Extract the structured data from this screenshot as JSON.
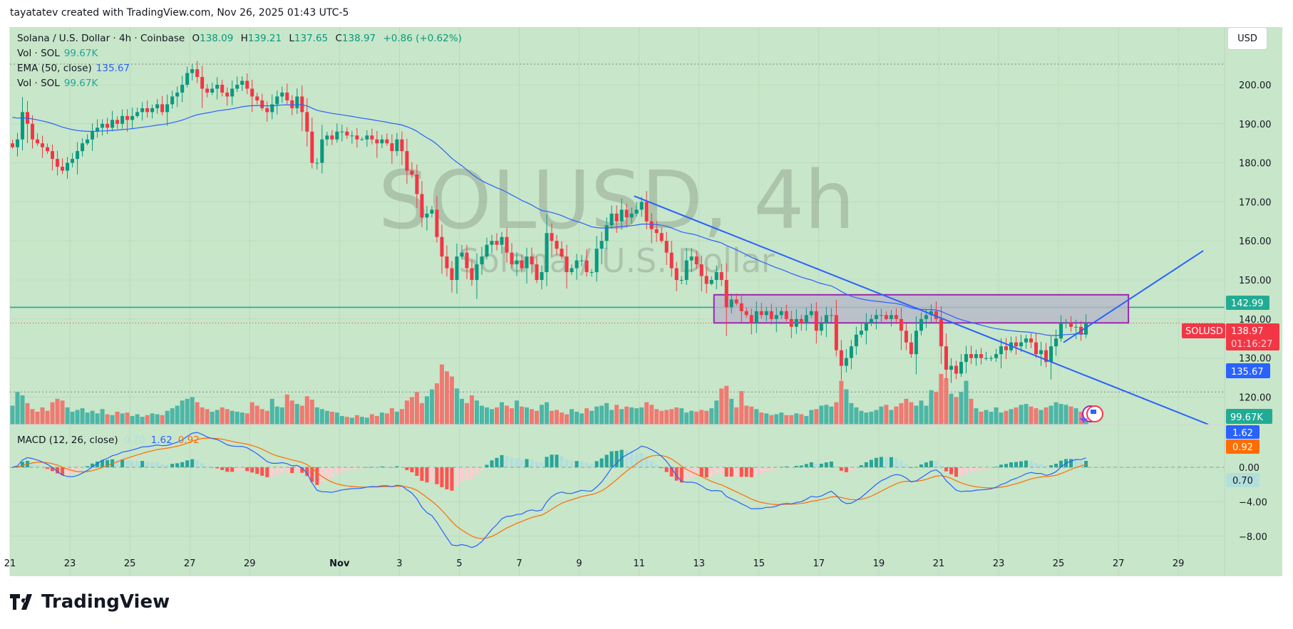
{
  "credit": "tayatatev created with TradingView.com, Nov 26, 2025 01:43 UTC-5",
  "brand": "TradingView",
  "currency_button": "USD",
  "legend": {
    "symbol": "Solana / U.S. Dollar · 4h · Coinbase",
    "o_label": "O",
    "o": "138.09",
    "h_label": "H",
    "h": "139.21",
    "l_label": "L",
    "l": "137.65",
    "c_label": "C",
    "c": "138.97",
    "change": "+0.86 (+0.62%)",
    "vol1_label": "Vol · SOL",
    "vol1": "99.67K",
    "ema_label": "EMA (50, close)",
    "ema": "135.67",
    "vol2_label": "Vol · SOL",
    "vol2": "99.67K",
    "macd_label": "MACD (12, 26, close)",
    "macd_hist": "0.70",
    "macd_line": "1.62",
    "macd_signal": "0.92"
  },
  "watermark": {
    "title": "SOLUSD, 4h",
    "subtitle": "Solana / U.S. Dollar"
  },
  "price_tags": {
    "level": "142.99",
    "symbol": "SOLUSD",
    "last": "138.97",
    "countdown": "01:16:27",
    "ema": "135.67",
    "volume": "99.67K",
    "macd": "1.62",
    "signal": "0.92",
    "hist": "0.70"
  },
  "colors": {
    "background": "#c8e6c9",
    "up": "#089981",
    "down": "#f23645",
    "vol_up": "#4db6a6",
    "vol_down": "#ef7a72",
    "ema": "#2962ff",
    "macd": "#2962ff",
    "signal": "#ff6d00",
    "trendline": "#2962ff",
    "box_border": "#9c27b0",
    "box_fill": "#b8b8c8",
    "level_line": "#22ab94"
  },
  "chart_data": {
    "type": "candlestick",
    "title": "",
    "interval": "4h",
    "start": "2025-10-21T00:00",
    "price_axis": {
      "range": [
        113,
        211
      ],
      "ticks": [
        "200.00",
        "190.00",
        "180.00",
        "170.00",
        "160.00",
        "150.00",
        "140.00",
        "130.00",
        "120.00"
      ]
    },
    "macd_axis": {
      "range": [
        -9.5,
        4.5
      ],
      "ticks": [
        "0.00",
        "-4.00",
        "-8.00"
      ]
    },
    "x_ticks": [
      {
        "label": "21",
        "date": "2025-10-21"
      },
      {
        "label": "23",
        "date": "2025-10-23"
      },
      {
        "label": "25",
        "date": "2025-10-25"
      },
      {
        "label": "27",
        "date": "2025-10-27"
      },
      {
        "label": "29",
        "date": "2025-10-29"
      },
      {
        "label": "Nov",
        "date": "2025-11-01"
      },
      {
        "label": "3",
        "date": "2025-11-03"
      },
      {
        "label": "5",
        "date": "2025-11-05"
      },
      {
        "label": "7",
        "date": "2025-11-07"
      },
      {
        "label": "9",
        "date": "2025-11-09"
      },
      {
        "label": "11",
        "date": "2025-11-11"
      },
      {
        "label": "13",
        "date": "2025-11-13"
      },
      {
        "label": "15",
        "date": "2025-11-15"
      },
      {
        "label": "17",
        "date": "2025-11-17"
      },
      {
        "label": "19",
        "date": "2025-11-19"
      },
      {
        "label": "21",
        "date": "2025-11-21"
      },
      {
        "label": "23",
        "date": "2025-11-23"
      },
      {
        "label": "25",
        "date": "2025-11-25"
      },
      {
        "label": "27",
        "date": "2025-11-27"
      },
      {
        "label": "29",
        "date": "2025-11-29"
      }
    ],
    "closes": [
      184,
      186,
      193,
      190,
      186,
      185,
      184,
      183,
      181,
      179,
      178,
      180,
      181,
      183,
      185,
      186,
      188,
      189,
      190,
      189,
      191,
      190,
      192,
      191,
      192,
      193,
      194,
      193,
      194,
      195,
      193,
      195,
      197,
      198,
      200,
      203,
      204,
      202,
      199,
      198,
      199,
      200,
      198,
      197,
      199,
      200,
      201,
      199,
      197,
      196,
      194,
      193,
      195,
      197,
      198,
      196,
      194,
      197,
      193,
      188,
      180,
      180,
      186,
      187,
      186,
      188,
      188,
      187,
      187,
      186,
      186,
      187,
      186,
      185,
      186,
      185,
      183,
      186,
      183,
      178,
      177,
      172,
      166,
      167,
      168,
      161,
      156,
      153,
      150,
      156,
      157,
      153,
      150,
      154,
      156,
      159,
      160,
      159,
      161,
      157,
      154,
      155,
      153,
      156,
      154,
      150,
      152,
      162,
      160,
      158,
      156,
      152,
      153,
      155,
      155,
      152,
      152,
      158,
      160,
      164,
      167,
      165,
      168,
      166,
      167,
      168,
      170,
      165,
      163,
      162,
      160,
      157,
      153,
      150,
      150,
      155,
      156,
      154,
      151,
      149,
      150,
      152,
      150,
      143,
      145,
      144,
      142,
      141,
      139,
      142,
      141,
      142,
      140,
      141,
      142,
      140,
      138,
      140,
      139,
      141,
      142,
      137,
      139,
      141,
      141,
      132,
      128,
      130,
      133,
      136,
      137,
      139,
      140,
      141,
      141,
      140,
      141,
      140,
      137,
      134,
      131,
      137,
      140,
      141,
      142,
      140,
      133,
      127,
      128,
      126,
      129,
      131,
      130,
      131,
      130,
      130,
      130,
      131,
      133,
      132,
      134,
      133,
      134,
      135,
      134,
      131,
      132,
      129,
      133,
      135,
      139,
      139,
      138,
      138,
      136,
      138.97
    ],
    "volumes_k": [
      220,
      380,
      340,
      250,
      180,
      150,
      200,
      160,
      260,
      300,
      280,
      200,
      150,
      170,
      190,
      140,
      160,
      130,
      180,
      120,
      110,
      150,
      130,
      140,
      100,
      120,
      90,
      110,
      130,
      120,
      110,
      160,
      190,
      220,
      280,
      300,
      320,
      260,
      200,
      180,
      150,
      170,
      200,
      180,
      160,
      150,
      140,
      130,
      260,
      220,
      180,
      160,
      300,
      210,
      200,
      350,
      280,
      240,
      220,
      330,
      290,
      200,
      180,
      160,
      150,
      140,
      100,
      90,
      80,
      110,
      90,
      80,
      120,
      100,
      140,
      130,
      190,
      150,
      180,
      280,
      320,
      380,
      250,
      330,
      410,
      480,
      700,
      620,
      560,
      420,
      300,
      250,
      340,
      280,
      220,
      200,
      180,
      200,
      260,
      220,
      190,
      280,
      210,
      200,
      180,
      160,
      230,
      260,
      160,
      170,
      140,
      120,
      180,
      150,
      130,
      190,
      160,
      210,
      220,
      250,
      170,
      230,
      180,
      210,
      200,
      190,
      200,
      260,
      230,
      180,
      160,
      170,
      180,
      200,
      190,
      140,
      160,
      150,
      170,
      160,
      190,
      280,
      420,
      450,
      300,
      200,
      390,
      220,
      210,
      180,
      140,
      130,
      110,
      120,
      140,
      110,
      110,
      130,
      120,
      100,
      170,
      180,
      220,
      230,
      210,
      260,
      510,
      410,
      250,
      200,
      160,
      140,
      150,
      170,
      210,
      230,
      170,
      210,
      250,
      300,
      260,
      220,
      280,
      220,
      400,
      380,
      590,
      540,
      360,
      320,
      380,
      510,
      300,
      190,
      150,
      170,
      150,
      200,
      140,
      160,
      180,
      200,
      230,
      240,
      210,
      190,
      170,
      200,
      220,
      260,
      240,
      230,
      210,
      190,
      150,
      99.67
    ],
    "indicators": {
      "ema_period": 50,
      "macd": [
        12,
        26,
        9
      ]
    },
    "drawings": {
      "horizontal_level": 142.99,
      "range_box": {
        "from": "2025-11-13T12:00",
        "to": "2025-11-27T08:00",
        "top": 146.2,
        "bottom": 139.0
      },
      "trendlines": [
        {
          "from": {
            "date": "2025-11-10T20:00",
            "price": 171.5
          },
          "to": {
            "date": "2025-11-30T00:00",
            "price": 113.0
          }
        },
        {
          "from": {
            "date": "2025-11-25T04:00",
            "price": 134.0
          },
          "to": {
            "date": "2025-11-29T20:00",
            "price": 157.5
          }
        }
      ],
      "reference_lines": [
        205.3,
        121.3
      ]
    }
  }
}
